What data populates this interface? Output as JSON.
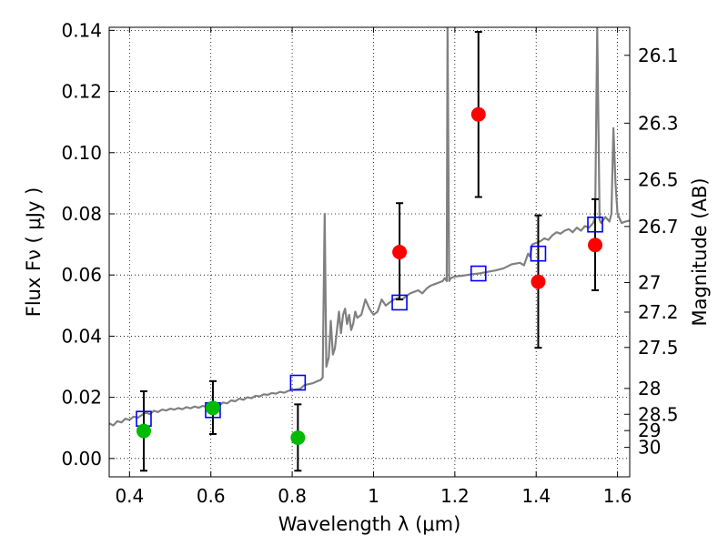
{
  "chart_data": {
    "type": "scatter",
    "xlabel": "Wavelength  λ (μm)",
    "ylabel": "Flux  Fν  ( μJy )",
    "y2label": "Magnitude (AB)",
    "xlim": [
      0.35,
      1.63
    ],
    "ylim": [
      -0.006,
      0.141
    ],
    "grid": true,
    "x_ticks": [
      {
        "v": 0.4,
        "label": "0.4"
      },
      {
        "v": 0.6,
        "label": "0.6"
      },
      {
        "v": 0.8,
        "label": "0.8"
      },
      {
        "v": 1.0,
        "label": "1"
      },
      {
        "v": 1.2,
        "label": "1.2"
      },
      {
        "v": 1.4,
        "label": "1.4"
      },
      {
        "v": 1.6,
        "label": "1.6"
      }
    ],
    "y_ticks": [
      {
        "v": 0.0,
        "label": "0.00"
      },
      {
        "v": 0.02,
        "label": "0.02"
      },
      {
        "v": 0.04,
        "label": "0.04"
      },
      {
        "v": 0.06,
        "label": "0.06"
      },
      {
        "v": 0.08,
        "label": "0.08"
      },
      {
        "v": 0.1,
        "label": "0.10"
      },
      {
        "v": 0.12,
        "label": "0.12"
      },
      {
        "v": 0.14,
        "label": "0.14"
      }
    ],
    "y2_ticks": [
      {
        "mag": 26.1,
        "label": "26.1"
      },
      {
        "mag": 26.3,
        "label": "26.3"
      },
      {
        "mag": 26.5,
        "label": "26.5"
      },
      {
        "mag": 26.7,
        "label": "26.7"
      },
      {
        "mag": 27.0,
        "label": "27"
      },
      {
        "mag": 27.2,
        "label": "27.2"
      },
      {
        "mag": 27.5,
        "label": "27.5"
      },
      {
        "mag": 28.0,
        "label": "28"
      },
      {
        "mag": 28.5,
        "label": "28.5"
      },
      {
        "mag": 29.0,
        "label": "29"
      },
      {
        "mag": 30.0,
        "label": "30"
      }
    ],
    "series": [
      {
        "kind": "model_spectrum",
        "color": "#808080",
        "points": [
          [
            0.35,
            0.0115
          ],
          [
            0.36,
            0.0108
          ],
          [
            0.37,
            0.0122
          ],
          [
            0.38,
            0.0118
          ],
          [
            0.39,
            0.013
          ],
          [
            0.4,
            0.0126
          ],
          [
            0.41,
            0.0137
          ],
          [
            0.42,
            0.0133
          ],
          [
            0.43,
            0.0142
          ],
          [
            0.44,
            0.015
          ],
          [
            0.45,
            0.0145
          ],
          [
            0.46,
            0.0156
          ],
          [
            0.47,
            0.0152
          ],
          [
            0.48,
            0.016
          ],
          [
            0.49,
            0.0157
          ],
          [
            0.5,
            0.0163
          ],
          [
            0.51,
            0.016
          ],
          [
            0.52,
            0.0165
          ],
          [
            0.53,
            0.0161
          ],
          [
            0.54,
            0.0168
          ],
          [
            0.55,
            0.0164
          ],
          [
            0.56,
            0.017
          ],
          [
            0.57,
            0.0166
          ],
          [
            0.58,
            0.0172
          ],
          [
            0.59,
            0.0168
          ],
          [
            0.6,
            0.0175
          ],
          [
            0.61,
            0.0178
          ],
          [
            0.62,
            0.0173
          ],
          [
            0.63,
            0.0183
          ],
          [
            0.64,
            0.018
          ],
          [
            0.65,
            0.019
          ],
          [
            0.66,
            0.0187
          ],
          [
            0.67,
            0.0196
          ],
          [
            0.68,
            0.0192
          ],
          [
            0.69,
            0.02
          ],
          [
            0.7,
            0.0197
          ],
          [
            0.71,
            0.0205
          ],
          [
            0.72,
            0.0203
          ],
          [
            0.73,
            0.021
          ],
          [
            0.74,
            0.0208
          ],
          [
            0.75,
            0.0214
          ],
          [
            0.76,
            0.0212
          ],
          [
            0.77,
            0.0218
          ],
          [
            0.78,
            0.0215
          ],
          [
            0.79,
            0.0221
          ],
          [
            0.8,
            0.0224
          ],
          [
            0.81,
            0.0226
          ],
          [
            0.82,
            0.0228
          ],
          [
            0.83,
            0.024
          ],
          [
            0.84,
            0.0243
          ],
          [
            0.85,
            0.0246
          ],
          [
            0.86,
            0.0252
          ],
          [
            0.87,
            0.0257
          ],
          [
            0.875,
            0.0265
          ],
          [
            0.88,
            0.08
          ],
          [
            0.884,
            0.03
          ],
          [
            0.89,
            0.033
          ],
          [
            0.895,
            0.045
          ],
          [
            0.9,
            0.034
          ],
          [
            0.905,
            0.036
          ],
          [
            0.91,
            0.042
          ],
          [
            0.915,
            0.048
          ],
          [
            0.92,
            0.041
          ],
          [
            0.925,
            0.047
          ],
          [
            0.93,
            0.049
          ],
          [
            0.935,
            0.044
          ],
          [
            0.94,
            0.047
          ],
          [
            0.945,
            0.042
          ],
          [
            0.95,
            0.044
          ],
          [
            0.955,
            0.048
          ],
          [
            0.96,
            0.046
          ],
          [
            0.97,
            0.047
          ],
          [
            0.98,
            0.052
          ],
          [
            0.99,
            0.049
          ],
          [
            1.0,
            0.047
          ],
          [
            1.01,
            0.048
          ],
          [
            1.02,
            0.052
          ],
          [
            1.03,
            0.05
          ],
          [
            1.04,
            0.051
          ],
          [
            1.05,
            0.052
          ],
          [
            1.06,
            0.0525
          ],
          [
            1.07,
            0.052
          ],
          [
            1.08,
            0.053
          ],
          [
            1.09,
            0.054
          ],
          [
            1.1,
            0.0545
          ],
          [
            1.11,
            0.055
          ],
          [
            1.12,
            0.054
          ],
          [
            1.13,
            0.0555
          ],
          [
            1.14,
            0.0565
          ],
          [
            1.15,
            0.057
          ],
          [
            1.16,
            0.0575
          ],
          [
            1.17,
            0.058
          ],
          [
            1.175,
            0.059
          ],
          [
            1.18,
            0.058
          ],
          [
            1.182,
            0.141
          ],
          [
            1.186,
            0.058
          ],
          [
            1.19,
            0.059
          ],
          [
            1.2,
            0.0595
          ],
          [
            1.22,
            0.0598
          ],
          [
            1.24,
            0.0602
          ],
          [
            1.26,
            0.0605
          ],
          [
            1.28,
            0.061
          ],
          [
            1.3,
            0.0615
          ],
          [
            1.32,
            0.0622
          ],
          [
            1.34,
            0.0635
          ],
          [
            1.36,
            0.064
          ],
          [
            1.37,
            0.0632
          ],
          [
            1.38,
            0.067
          ],
          [
            1.385,
            0.066
          ],
          [
            1.39,
            0.07
          ],
          [
            1.4,
            0.0705
          ],
          [
            1.41,
            0.071
          ],
          [
            1.42,
            0.072
          ],
          [
            1.43,
            0.0715
          ],
          [
            1.44,
            0.073
          ],
          [
            1.45,
            0.074
          ],
          [
            1.46,
            0.0735
          ],
          [
            1.47,
            0.0745
          ],
          [
            1.48,
            0.075
          ],
          [
            1.49,
            0.074
          ],
          [
            1.5,
            0.0755
          ],
          [
            1.51,
            0.0745
          ],
          [
            1.52,
            0.076
          ],
          [
            1.53,
            0.0755
          ],
          [
            1.54,
            0.077
          ],
          [
            1.545,
            0.079
          ],
          [
            1.55,
            0.141
          ],
          [
            1.556,
            0.078
          ],
          [
            1.56,
            0.077
          ],
          [
            1.57,
            0.079
          ],
          [
            1.58,
            0.0775
          ],
          [
            1.585,
            0.08
          ],
          [
            1.59,
            0.108
          ],
          [
            1.595,
            0.09
          ],
          [
            1.6,
            0.08
          ],
          [
            1.61,
            0.077
          ],
          [
            1.62,
            0.0775
          ],
          [
            1.63,
            0.0778
          ]
        ]
      },
      {
        "kind": "model_photometry",
        "marker": "open-square",
        "color": "#0000ff",
        "points": [
          [
            0.435,
            0.013
          ],
          [
            0.605,
            0.0158
          ],
          [
            0.814,
            0.0248
          ],
          [
            1.064,
            0.051
          ],
          [
            1.258,
            0.0605
          ],
          [
            1.405,
            0.067
          ],
          [
            1.545,
            0.0765
          ]
        ]
      },
      {
        "kind": "detection",
        "marker": "filled-circle",
        "color": "#ff0000",
        "points": [
          {
            "x": 1.064,
            "y": 0.0675,
            "lo": 0.052,
            "hi": 0.0835
          },
          {
            "x": 1.258,
            "y": 0.1125,
            "lo": 0.0855,
            "hi": 0.1395
          },
          {
            "x": 1.405,
            "y": 0.0578,
            "lo": 0.0362,
            "hi": 0.0795
          },
          {
            "x": 1.545,
            "y": 0.0698,
            "lo": 0.055,
            "hi": 0.0848
          }
        ]
      },
      {
        "kind": "low_significance",
        "marker": "filled-circle",
        "color": "#00bb00",
        "points": [
          {
            "x": 0.435,
            "y": 0.009,
            "lo": -0.004,
            "hi": 0.022
          },
          {
            "x": 0.605,
            "y": 0.0165,
            "lo": 0.008,
            "hi": 0.0253
          },
          {
            "x": 0.814,
            "y": 0.0068,
            "lo": -0.004,
            "hi": 0.0177
          }
        ]
      }
    ]
  }
}
